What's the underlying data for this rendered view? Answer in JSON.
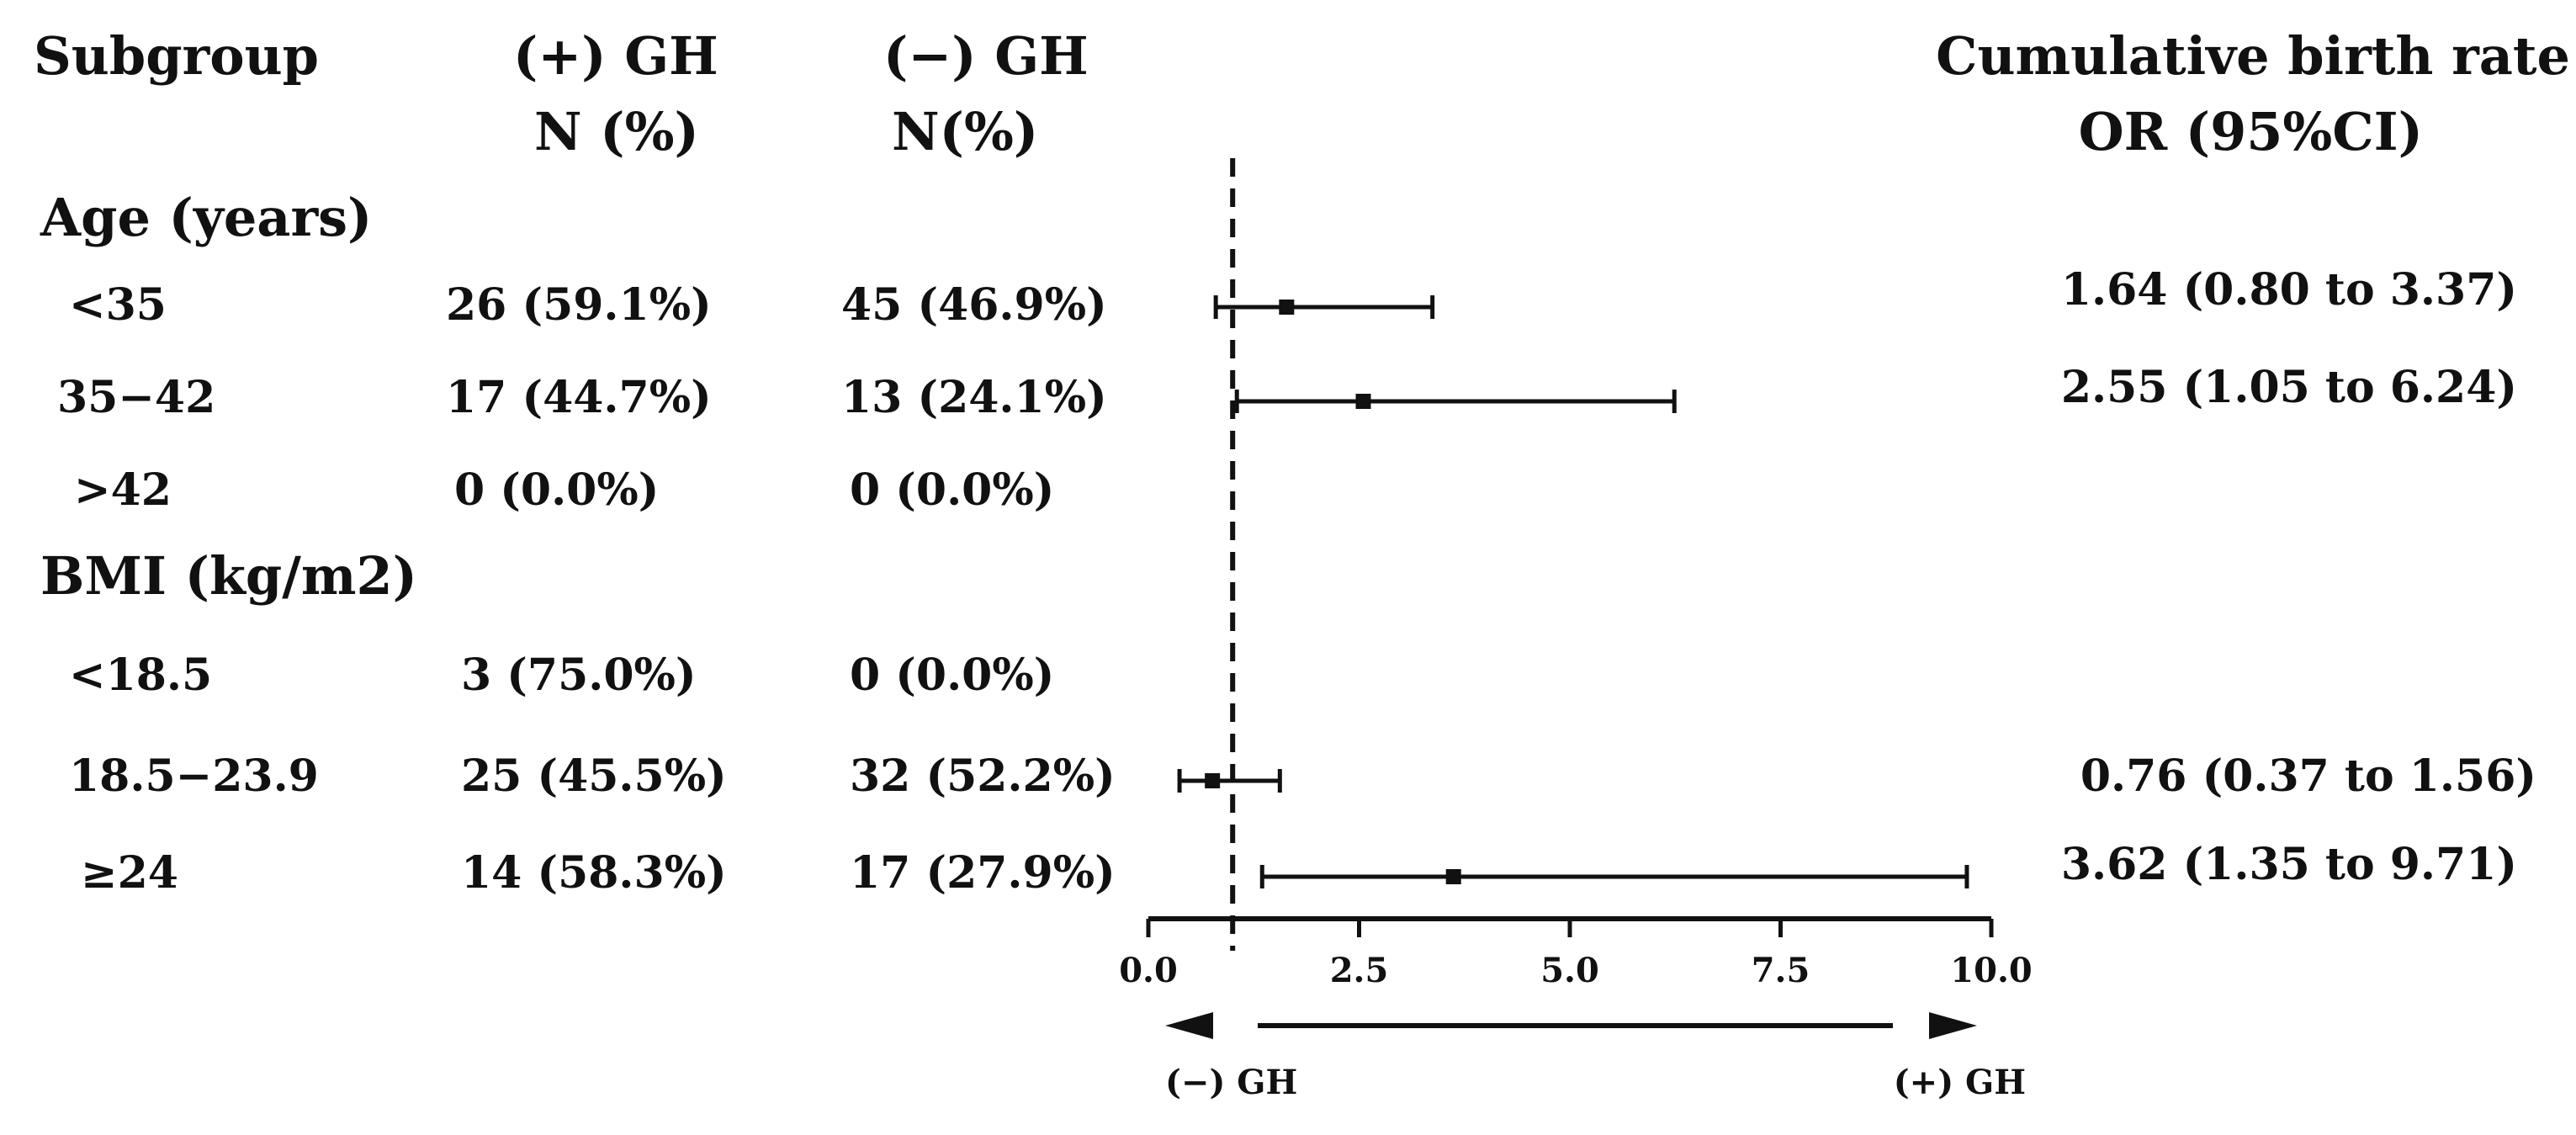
{
  "headers": {
    "subgroup": "Subgroup",
    "pos_gh": "(+) GH",
    "pos_gh_sub": "N (%)",
    "neg_gh": "(−) GH",
    "neg_gh_sub": "N(%)",
    "outcome": "Cumulative birth rate",
    "outcome_sub": "OR (95%CI)"
  },
  "rows": [
    {
      "type": "group",
      "label": "Age (years)"
    },
    {
      "type": "item",
      "label": "<35",
      "pos": "26 (59.1%)",
      "neg": "45 (46.9%)",
      "or_text": "1.64 (0.80 to 3.37)"
    },
    {
      "type": "item",
      "label": "35−42",
      "pos": "17 (44.7%)",
      "neg": "13 (24.1%)",
      "or_text": "2.55 (1.05 to 6.24)"
    },
    {
      "type": "item",
      "label": ">42",
      "pos": "0 (0.0%)",
      "neg": "0 (0.0%)",
      "or_text": ""
    },
    {
      "type": "group",
      "label": "BMI (kg/m2)"
    },
    {
      "type": "item",
      "label": "<18.5",
      "pos": "3 (75.0%)",
      "neg": "0 (0.0%)",
      "or_text": ""
    },
    {
      "type": "item",
      "label": "18.5−23.9",
      "pos": "25 (45.5%)",
      "neg": "32 (52.2%)",
      "or_text": "0.76 (0.37 to 1.56)"
    },
    {
      "type": "item",
      "label": "≥24",
      "pos": "14 (58.3%)",
      "neg": "17 (27.9%)",
      "or_text": "3.62 (1.35 to 9.71)"
    }
  ],
  "direction": {
    "left": "(−)  GH",
    "right": "(+) GH"
  },
  "chart_data": {
    "type": "forest",
    "reference_line": 1,
    "xlim": [
      0,
      10
    ],
    "xticks": [
      "0.0",
      "2.5",
      "5.0",
      "7.5",
      "10.0"
    ],
    "xtick_values": [
      0,
      2.5,
      5,
      7.5,
      10
    ],
    "points": [
      {
        "row": 1,
        "or": 1.64,
        "lo": 0.8,
        "hi": 3.37
      },
      {
        "row": 2,
        "or": 2.55,
        "lo": 1.05,
        "hi": 6.24
      },
      {
        "row": 6,
        "or": 0.76,
        "lo": 0.37,
        "hi": 1.56
      },
      {
        "row": 7,
        "or": 3.62,
        "lo": 1.35,
        "hi": 9.71
      }
    ]
  }
}
